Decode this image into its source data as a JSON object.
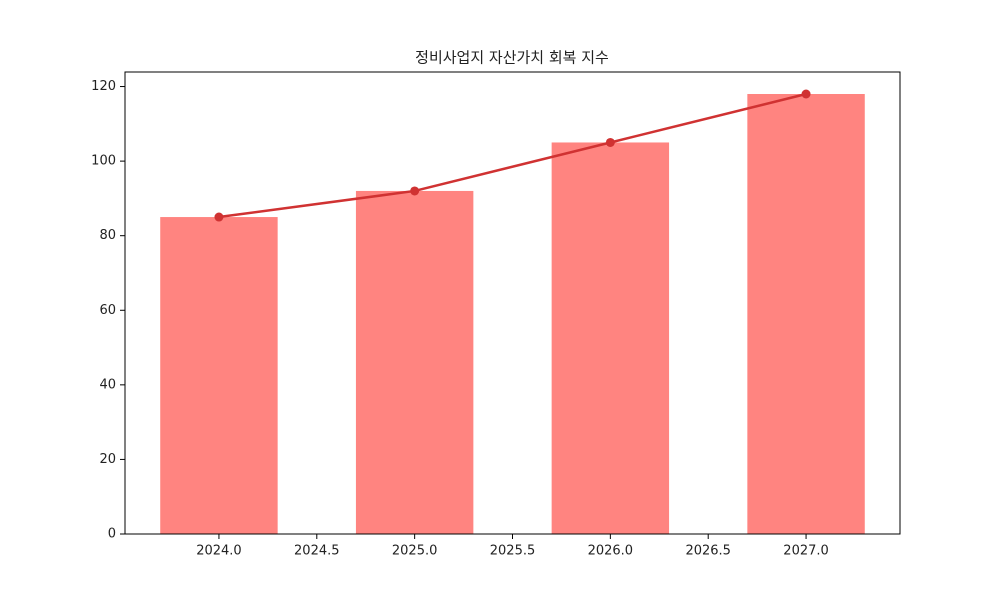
{
  "chart_data": {
    "type": "combo",
    "title": "정비사업지 자산가치 회복 지수",
    "x": [
      2024,
      2025,
      2026,
      2027
    ],
    "series": [
      {
        "type": "bar",
        "color": "#ff8480",
        "values": [
          85,
          92,
          105,
          118
        ]
      },
      {
        "type": "line",
        "color": "#d03232",
        "values": [
          85,
          92,
          105,
          118
        ]
      }
    ],
    "xlim": [
      2023.52,
      2027.48
    ],
    "xticks": [
      {
        "value": 2024,
        "label": "2024.0"
      },
      {
        "value": 2024.5,
        "label": "2024.5"
      },
      {
        "value": 2025,
        "label": "2025.0"
      },
      {
        "value": 2025.5,
        "label": "2025.5"
      },
      {
        "value": 2026,
        "label": "2026.0"
      },
      {
        "value": 2026.5,
        "label": "2026.5"
      },
      {
        "value": 2027,
        "label": "2027.0"
      }
    ],
    "ylim": [
      0,
      123.9
    ],
    "yticks": [
      0,
      20,
      40,
      60,
      80,
      100,
      120
    ]
  }
}
